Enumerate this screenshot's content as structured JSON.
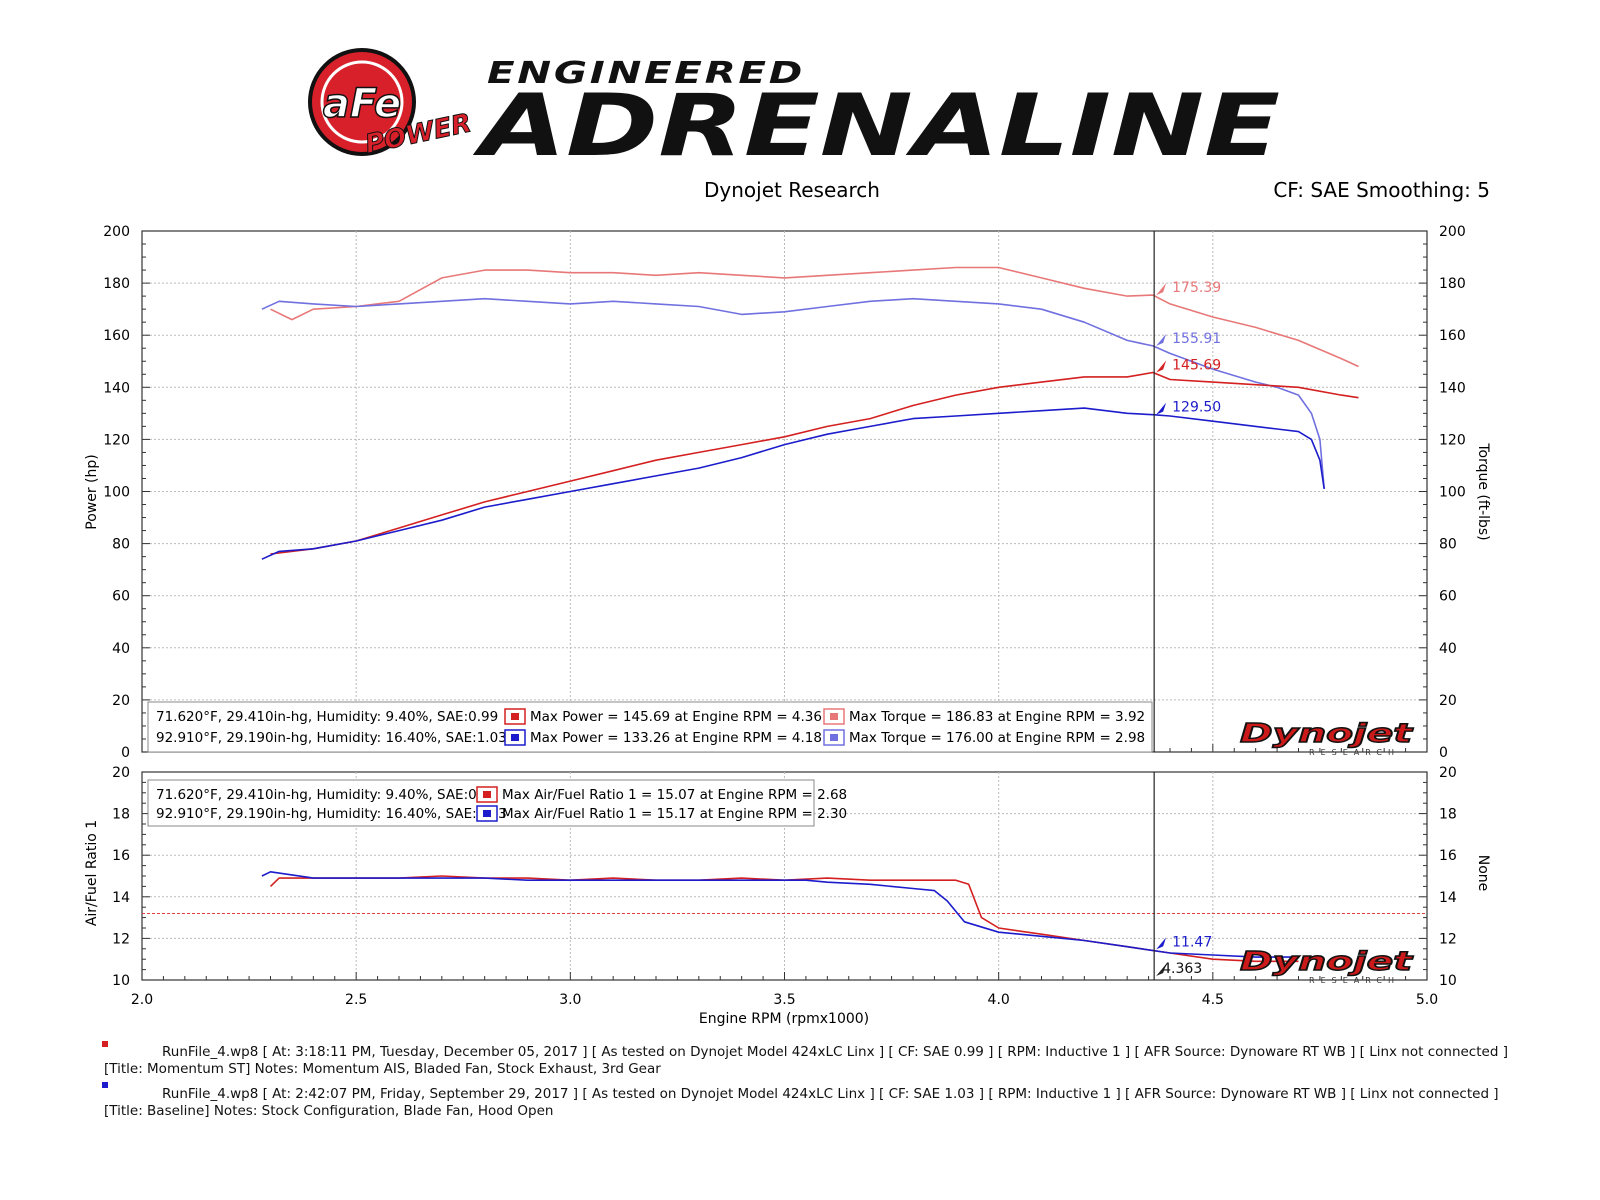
{
  "header": {
    "logo_brand": "aFe",
    "logo_sub": "POWER",
    "tagline_top": "ENGINEERED",
    "tagline_main": "ADRENALINE",
    "source": "Dynojet Research",
    "cf_info": "CF: SAE Smoothing: 5"
  },
  "watermark": {
    "brand": "Dynojet",
    "sub": "RESEARCH"
  },
  "colors": {
    "run1_power": "#d42020",
    "run1_torque": "#e87878",
    "run2_power": "#1c1ccc",
    "run2_torque": "#7070e0",
    "cursor": "#222222",
    "afr_ref": "#e04040"
  },
  "chart_data": [
    {
      "type": "line",
      "ylabel": "Power (hp)",
      "y2label": "Torque (ft-lbs)",
      "xlim": [
        2.0,
        5.0
      ],
      "ylim": [
        0,
        200
      ],
      "x_ticks": [
        "2.0",
        "2.5",
        "3.0",
        "3.5",
        "4.0",
        "4.5",
        "5.0"
      ],
      "y_ticks": [
        "0",
        "20",
        "40",
        "60",
        "80",
        "100",
        "120",
        "140",
        "160",
        "180",
        "200"
      ],
      "cursor_x": 4.363,
      "series": [
        {
          "key": "run1_torque",
          "axis": "right",
          "x": [
            2.3,
            2.35,
            2.4,
            2.5,
            2.6,
            2.7,
            2.8,
            2.9,
            3.0,
            3.1,
            3.2,
            3.3,
            3.4,
            3.5,
            3.6,
            3.7,
            3.8,
            3.9,
            4.0,
            4.1,
            4.2,
            4.3,
            4.36,
            4.4,
            4.5,
            4.6,
            4.7,
            4.8,
            4.84
          ],
          "y": [
            170,
            166,
            170,
            171,
            173,
            182,
            185,
            185,
            184,
            184,
            183,
            184,
            183,
            182,
            183,
            184,
            185,
            186,
            186,
            182,
            178,
            175,
            175.4,
            172,
            167,
            163,
            158,
            151,
            148
          ]
        },
        {
          "key": "run2_torque",
          "axis": "right",
          "x": [
            2.28,
            2.32,
            2.4,
            2.5,
            2.6,
            2.7,
            2.8,
            2.9,
            3.0,
            3.1,
            3.2,
            3.3,
            3.4,
            3.5,
            3.6,
            3.7,
            3.8,
            3.9,
            4.0,
            4.1,
            4.2,
            4.3,
            4.36,
            4.4,
            4.5,
            4.6,
            4.65,
            4.7,
            4.73,
            4.75,
            4.76
          ],
          "y": [
            170,
            173,
            172,
            171,
            172,
            173,
            174,
            173,
            172,
            173,
            172,
            171,
            168,
            169,
            171,
            173,
            174,
            173,
            172,
            170,
            165,
            158,
            155.9,
            153,
            147,
            142,
            140,
            137,
            130,
            120,
            101
          ]
        },
        {
          "key": "run1_power",
          "axis": "left",
          "x": [
            2.3,
            2.4,
            2.5,
            2.6,
            2.7,
            2.8,
            2.9,
            3.0,
            3.1,
            3.2,
            3.3,
            3.4,
            3.5,
            3.6,
            3.7,
            3.8,
            3.9,
            4.0,
            4.1,
            4.2,
            4.3,
            4.36,
            4.4,
            4.5,
            4.6,
            4.7,
            4.8,
            4.84
          ],
          "y": [
            76,
            78,
            81,
            86,
            91,
            96,
            100,
            104,
            108,
            112,
            115,
            118,
            121,
            125,
            128,
            133,
            137,
            140,
            142,
            144,
            144,
            145.7,
            143,
            142,
            141,
            140,
            137,
            136
          ]
        },
        {
          "key": "run2_power",
          "axis": "left",
          "x": [
            2.28,
            2.32,
            2.4,
            2.5,
            2.6,
            2.7,
            2.8,
            2.9,
            3.0,
            3.1,
            3.2,
            3.3,
            3.4,
            3.5,
            3.6,
            3.7,
            3.8,
            3.9,
            4.0,
            4.1,
            4.2,
            4.3,
            4.36,
            4.4,
            4.5,
            4.6,
            4.65,
            4.7,
            4.73,
            4.75,
            4.76
          ],
          "y": [
            74,
            77,
            78,
            81,
            85,
            89,
            94,
            97,
            100,
            103,
            106,
            109,
            113,
            118,
            122,
            125,
            128,
            129,
            130,
            131,
            132,
            130,
            129.5,
            129,
            127,
            125,
            124,
            123,
            120,
            112,
            101
          ]
        }
      ],
      "cursor_labels": [
        {
          "key": "run1_torque",
          "value": "175.39",
          "y": 175.39
        },
        {
          "key": "run2_torque",
          "value": "155.91",
          "y": 155.91
        },
        {
          "key": "run1_power",
          "value": "145.69",
          "y": 145.69
        },
        {
          "key": "run2_power",
          "value": "129.50",
          "y": 129.5
        }
      ],
      "legend": {
        "rows": [
          {
            "conditions": "71.620°F, 29.410in-hg, Humidity: 9.40%, SAE:0.99",
            "power_key": "run1_power",
            "power": "Max Power = 145.69 at Engine RPM = 4.36",
            "torque_key": "run1_torque",
            "torque": "Max Torque = 186.83 at Engine RPM = 3.92"
          },
          {
            "conditions": "92.910°F, 29.190in-hg, Humidity: 16.40%, SAE:1.03",
            "power_key": "run2_power",
            "power": "Max Power = 133.26 at Engine RPM = 4.18",
            "torque_key": "run2_torque",
            "torque": "Max Torque = 176.00 at Engine RPM = 2.98"
          }
        ]
      }
    },
    {
      "type": "line",
      "ylabel": "Air/Fuel Ratio 1",
      "y2label": "None",
      "xlabel": "Engine RPM (rpmx1000)",
      "xlim": [
        2.0,
        5.0
      ],
      "ylim": [
        10,
        20
      ],
      "x_ticks": [
        "2.0",
        "2.5",
        "3.0",
        "3.5",
        "4.0",
        "4.5",
        "5.0"
      ],
      "y_ticks": [
        "10",
        "12",
        "14",
        "16",
        "18",
        "20"
      ],
      "reference_y": 13.2,
      "cursor_x": 4.363,
      "cursor_x_label": "4.363",
      "series": [
        {
          "key": "run1_power",
          "axis": "left",
          "x": [
            2.3,
            2.32,
            2.4,
            2.5,
            2.6,
            2.7,
            2.8,
            2.9,
            3.0,
            3.1,
            3.2,
            3.3,
            3.4,
            3.5,
            3.6,
            3.7,
            3.8,
            3.85,
            3.9,
            3.93,
            3.96,
            4.0,
            4.1,
            4.2,
            4.3,
            4.4,
            4.5,
            4.6,
            4.7
          ],
          "y": [
            14.5,
            14.9,
            14.9,
            14.9,
            14.9,
            15.0,
            14.9,
            14.9,
            14.8,
            14.9,
            14.8,
            14.8,
            14.9,
            14.8,
            14.9,
            14.8,
            14.8,
            14.8,
            14.8,
            14.6,
            13.0,
            12.5,
            12.2,
            11.9,
            11.6,
            11.3,
            11.0,
            10.9,
            10.9
          ]
        },
        {
          "key": "run2_power",
          "axis": "left",
          "x": [
            2.28,
            2.3,
            2.4,
            2.5,
            2.6,
            2.7,
            2.8,
            2.9,
            3.0,
            3.1,
            3.2,
            3.3,
            3.4,
            3.5,
            3.55,
            3.6,
            3.7,
            3.8,
            3.85,
            3.88,
            3.92,
            4.0,
            4.1,
            4.2,
            4.3,
            4.4,
            4.5,
            4.6,
            4.7
          ],
          "y": [
            15.0,
            15.2,
            14.9,
            14.9,
            14.9,
            14.9,
            14.9,
            14.8,
            14.8,
            14.8,
            14.8,
            14.8,
            14.8,
            14.8,
            14.8,
            14.7,
            14.6,
            14.4,
            14.3,
            13.8,
            12.8,
            12.3,
            12.1,
            11.9,
            11.6,
            11.3,
            11.2,
            11.1,
            11.1
          ]
        }
      ],
      "cursor_labels": [
        {
          "key": "run2_power",
          "value": "11.47",
          "y": 11.47
        }
      ],
      "legend": {
        "rows": [
          {
            "conditions": "71.620°F, 29.410in-hg, Humidity: 9.40%, SAE:0.99",
            "afr_key": "run1_power",
            "afr": "Max Air/Fuel Ratio 1 = 15.07 at Engine RPM = 2.68"
          },
          {
            "conditions": "92.910°F, 29.190in-hg, Humidity: 16.40%, SAE:1.03",
            "afr_key": "run2_power",
            "afr": "Max Air/Fuel Ratio 1 = 15.17 at Engine RPM = 2.30"
          }
        ]
      }
    }
  ],
  "notes": {
    "run1_line1": "RunFile_4.wp8 [ At: 3:18:11 PM, Tuesday, December 05, 2017 ] [ As tested on Dynojet Model 424xLC Linx ] [ CF: SAE 0.99 ] [ RPM: Inductive 1 ] [ AFR Source: Dynoware RT WB ] [ Linx not connected ]",
    "run1_line2": "[Title: Momentum ST]  Notes: Momentum AIS, Bladed Fan, Stock Exhaust, 3rd Gear",
    "run2_line1": "RunFile_4.wp8 [ At: 2:42:07 PM, Friday, September 29, 2017 ] [ As tested on Dynojet Model 424xLC Linx ] [ CF: SAE 1.03 ] [ RPM: Inductive 1 ] [ AFR Source: Dynoware RT WB ] [ Linx not connected ]",
    "run2_line2": "[Title: Baseline]  Notes: Stock Configuration, Blade Fan, Hood Open"
  }
}
